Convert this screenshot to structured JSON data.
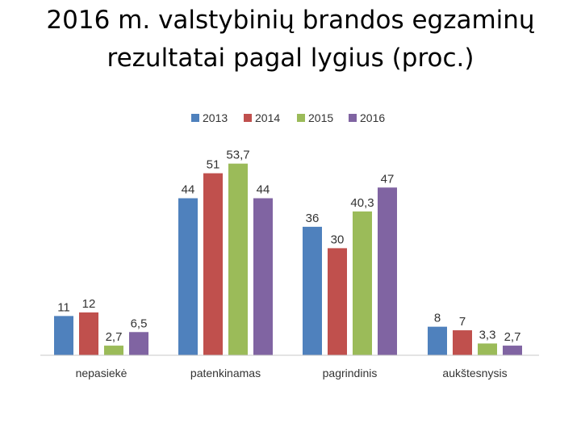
{
  "chart_data": {
    "type": "bar",
    "title_lines": [
      "2016 m. valstybinių brandos egzaminų",
      "rezultatai pagal lygius (proc.)"
    ],
    "categories": [
      "nepasiekė",
      "patenkinamas",
      "pagrindinis",
      "aukštesnysis"
    ],
    "series": [
      {
        "name": "2013",
        "color": "#4f81bd",
        "values": [
          11,
          44,
          36,
          8
        ],
        "labels": [
          "11",
          "44",
          "36",
          "8"
        ]
      },
      {
        "name": "2014",
        "color": "#c0504d",
        "values": [
          12,
          51,
          30,
          7
        ],
        "labels": [
          "12",
          "51",
          "30",
          "7"
        ]
      },
      {
        "name": "2015",
        "color": "#9bbb59",
        "values": [
          2.7,
          53.7,
          40.3,
          3.3
        ],
        "labels": [
          "2,7",
          "53,7",
          "40,3",
          "3,3"
        ]
      },
      {
        "name": "2016",
        "color": "#8064a2",
        "values": [
          6.5,
          44,
          47,
          2.7
        ],
        "labels": [
          "6,5",
          "44",
          "47",
          "2,7"
        ]
      }
    ],
    "ylim": [
      0,
      60
    ],
    "grid": false,
    "legend_position": "top"
  }
}
